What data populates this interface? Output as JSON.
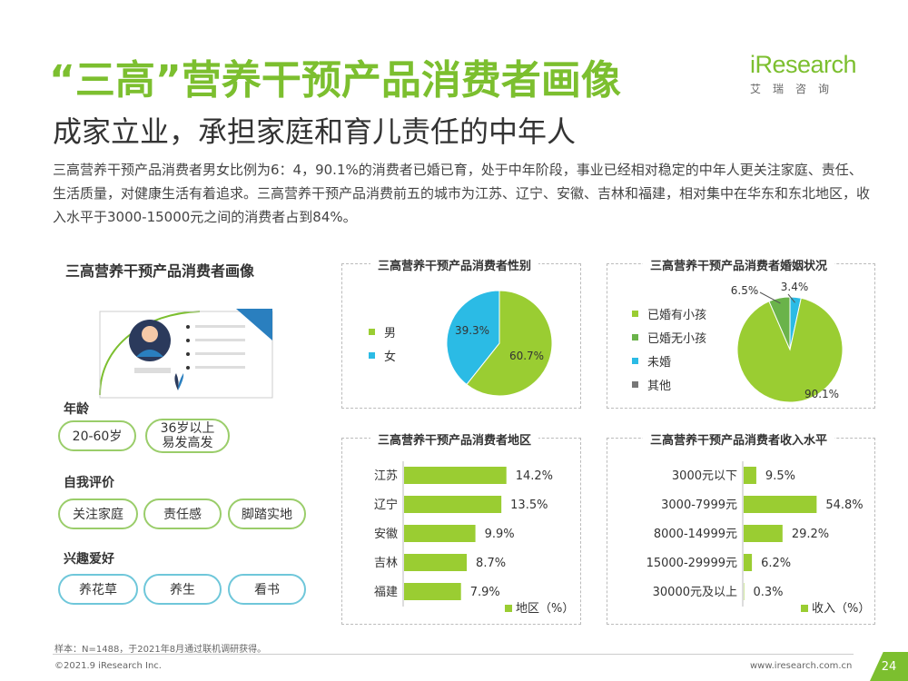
{
  "header": {
    "title": "“三高”营养干预产品消费者画像",
    "subtitle": "成家立业，承担家庭和育儿责任的中年人",
    "description": "三高营养干预产品消费者男女比例为6：4，90.1%的消费者已婚已育，处于中年阶段，事业已经相对稳定的中年人更关注家庭、责任、生活质量，对健康生活有着追求。三高营养干预产品消费前五的城市为江苏、辽宁、安徽、吉林和福建，相对集中在华东和东北地区，收入水平于3000-15000元之间的消费者占到84%。"
  },
  "logo": {
    "main": "iResearch",
    "sub": "艾瑞咨询"
  },
  "profile": {
    "title": "三高营养干预产品消费者画像",
    "age": {
      "label": "年龄",
      "tags": [
        "20-60岁",
        "36岁以上",
        "易发高发"
      ]
    },
    "self": {
      "label": "自我评价",
      "tags": [
        "关注家庭",
        "责任感",
        "脚踏实地"
      ]
    },
    "hobby": {
      "label": "兴趣爱好",
      "tags": [
        "养花草",
        "养生",
        "看书"
      ]
    }
  },
  "chart_data": [
    {
      "type": "pie",
      "title": "三高营养干预产品消费者性别",
      "categories": [
        "男",
        "女"
      ],
      "values": [
        60.7,
        39.3
      ],
      "value_labels": [
        "60.7%",
        "39.3%"
      ],
      "colors": [
        "#9acd32",
        "#2bbbe5"
      ],
      "legend": "left"
    },
    {
      "type": "pie",
      "title": "三高营养干预产品消费者婚姻状况",
      "categories": [
        "已婚有小孩",
        "已婚无小孩",
        "未婚",
        "其他"
      ],
      "values": [
        90.1,
        6.5,
        3.4,
        0
      ],
      "value_labels": [
        "90.1%",
        "6.5%",
        "3.4%",
        ""
      ],
      "colors": [
        "#9acd32",
        "#6ab34a",
        "#2bbbe5",
        "#777777"
      ],
      "legend": "left"
    },
    {
      "type": "bar",
      "title": "三高营养干预产品消费者地区",
      "orientation": "horizontal",
      "categories": [
        "江苏",
        "辽宁",
        "安徽",
        "吉林",
        "福建"
      ],
      "values": [
        14.2,
        13.5,
        9.9,
        8.7,
        7.9
      ],
      "value_labels": [
        "14.2%",
        "13.5%",
        "9.9%",
        "8.7%",
        "7.9%"
      ],
      "series_name": "地区（%）",
      "color": "#9acd32",
      "xlim": [
        0,
        16
      ]
    },
    {
      "type": "bar",
      "title": "三高营养干预产品消费者收入水平",
      "orientation": "horizontal",
      "categories": [
        "3000元以下",
        "3000-7999元",
        "8000-14999元",
        "15000-29999元",
        "30000元及以上"
      ],
      "values": [
        9.5,
        54.8,
        29.2,
        6.2,
        0.3
      ],
      "value_labels": [
        "9.5%",
        "54.8%",
        "29.2%",
        "6.2%",
        "0.3%"
      ],
      "series_name": "收入（%）",
      "color": "#9acd32",
      "xlim": [
        0,
        60
      ]
    }
  ],
  "footer": {
    "note": "样本：N=1488，于2021年8月通过联机调研获得。",
    "copyright": "©2021.9 iResearch Inc.",
    "url": "www.iresearch.com.cn",
    "page": "24"
  }
}
